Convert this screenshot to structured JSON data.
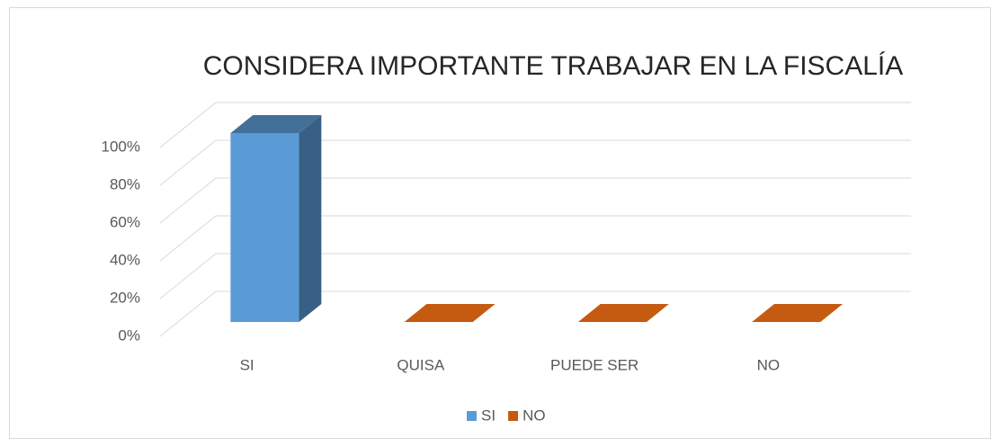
{
  "chart_data": {
    "type": "bar3d",
    "title": "CONSIDERA IMPORTANTE TRABAJAR EN LA FISCALÍA",
    "categories": [
      "SI",
      "QUISA",
      "PUEDE SER",
      "NO"
    ],
    "series": [
      {
        "name": "SI",
        "color": "#5b9bd5",
        "values": [
          100,
          null,
          null,
          null
        ]
      },
      {
        "name": "NO",
        "color": "#c55a11",
        "values": [
          null,
          0,
          0,
          0
        ]
      }
    ],
    "ylim": [
      0,
      100
    ],
    "yticks": [
      {
        "value": 0,
        "label": "0%"
      },
      {
        "value": 20,
        "label": "20%"
      },
      {
        "value": 40,
        "label": "40%"
      },
      {
        "value": 60,
        "label": "60%"
      },
      {
        "value": 80,
        "label": "80%"
      },
      {
        "value": 100,
        "label": "100%"
      }
    ],
    "grid": true,
    "legend": "bottom"
  }
}
